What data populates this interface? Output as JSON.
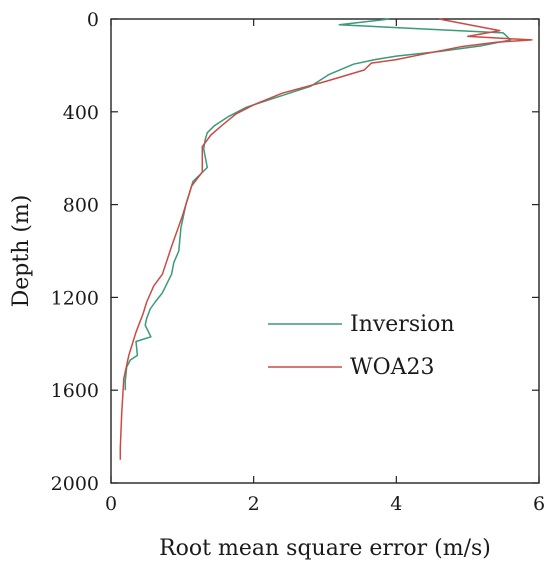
{
  "chart_data": {
    "type": "line",
    "xlabel": "Root mean square error (m/s)",
    "ylabel": "Depth (m)",
    "xlim": [
      0,
      6
    ],
    "ylim": [
      2000,
      0
    ],
    "y_axis_inverted": true,
    "x_ticks": [
      0,
      2,
      4,
      6
    ],
    "y_ticks": [
      0,
      400,
      800,
      1200,
      1600,
      2000
    ],
    "x_tick_labels": [
      "0",
      "2",
      "4",
      "6"
    ],
    "y_tick_labels": [
      "0",
      "400",
      "800",
      "1200",
      "1600",
      "2000"
    ],
    "grid": false,
    "legend_position": "center-right",
    "series": [
      {
        "name": "Inversion",
        "color": "#3a9a7a",
        "points": [
          [
            3.9,
            0
          ],
          [
            3.2,
            25
          ],
          [
            5.5,
            60
          ],
          [
            5.6,
            90
          ],
          [
            5.2,
            115
          ],
          [
            4.6,
            140
          ],
          [
            4.0,
            160
          ],
          [
            3.7,
            175
          ],
          [
            3.4,
            195
          ],
          [
            3.05,
            240
          ],
          [
            2.8,
            290
          ],
          [
            2.5,
            320
          ],
          [
            2.2,
            350
          ],
          [
            1.9,
            380
          ],
          [
            1.65,
            420
          ],
          [
            1.45,
            460
          ],
          [
            1.35,
            490
          ],
          [
            1.32,
            520
          ],
          [
            1.3,
            560
          ],
          [
            1.35,
            640
          ],
          [
            1.15,
            700
          ],
          [
            1.05,
            800
          ],
          [
            0.98,
            900
          ],
          [
            0.95,
            1000
          ],
          [
            0.88,
            1050
          ],
          [
            0.85,
            1100
          ],
          [
            0.8,
            1130
          ],
          [
            0.72,
            1180
          ],
          [
            0.62,
            1220
          ],
          [
            0.55,
            1250
          ],
          [
            0.5,
            1290
          ],
          [
            0.48,
            1320
          ],
          [
            0.56,
            1370
          ],
          [
            0.35,
            1390
          ],
          [
            0.37,
            1450
          ],
          [
            0.27,
            1470
          ],
          [
            0.22,
            1500
          ],
          [
            0.2,
            1560
          ],
          [
            0.2,
            1600
          ]
        ]
      },
      {
        "name": "WOA23",
        "color": "#cc4a45",
        "points": [
          [
            4.6,
            0
          ],
          [
            5.45,
            50
          ],
          [
            5.0,
            75
          ],
          [
            5.9,
            90
          ],
          [
            5.4,
            100
          ],
          [
            4.9,
            120
          ],
          [
            4.4,
            150
          ],
          [
            4.0,
            175
          ],
          [
            3.65,
            190
          ],
          [
            3.55,
            220
          ],
          [
            3.0,
            270
          ],
          [
            2.4,
            320
          ],
          [
            2.0,
            370
          ],
          [
            1.75,
            410
          ],
          [
            1.55,
            460
          ],
          [
            1.4,
            500
          ],
          [
            1.28,
            550
          ],
          [
            1.28,
            640
          ],
          [
            1.28,
            660
          ],
          [
            1.13,
            720
          ],
          [
            1.0,
            850
          ],
          [
            0.85,
            980
          ],
          [
            0.72,
            1100
          ],
          [
            0.6,
            1150
          ],
          [
            0.5,
            1220
          ],
          [
            0.45,
            1270
          ],
          [
            0.35,
            1350
          ],
          [
            0.25,
            1450
          ],
          [
            0.18,
            1550
          ],
          [
            0.15,
            1700
          ],
          [
            0.13,
            1850
          ],
          [
            0.13,
            1900
          ]
        ]
      }
    ]
  }
}
